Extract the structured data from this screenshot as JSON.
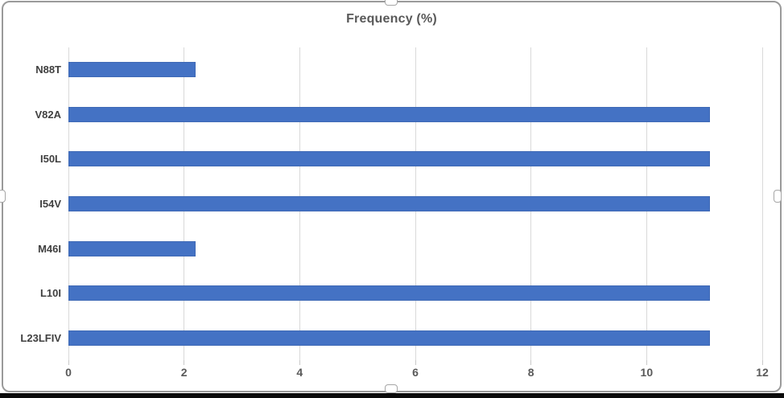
{
  "title": "Frequency (%)",
  "colors": {
    "bar": "#4472C4",
    "bar_edge": "#3F69B5",
    "gridline": "#D9D9D9",
    "title_text": "#595959",
    "axis_text": "#595959",
    "category_text": "#3F3F3F",
    "chart_border": "#9A9A9A",
    "bottom_rule": "#0A0A0A"
  },
  "chart_data": {
    "type": "bar",
    "orientation": "horizontal",
    "title": "Frequency (%)",
    "categories": [
      "N88T",
      "V82A",
      "I50L",
      "I54V",
      "M46I",
      "L10I",
      "L23LFIV"
    ],
    "values": [
      2.2,
      11.1,
      11.1,
      11.1,
      2.2,
      11.1,
      11.1
    ],
    "xlabel": "",
    "ylabel": "",
    "xlim": [
      0,
      12
    ],
    "x_ticks": [
      0,
      2,
      4,
      6,
      8,
      10,
      12
    ],
    "grid": true,
    "legend": false
  },
  "selection": {
    "handles": [
      "top",
      "bottom",
      "left",
      "right"
    ]
  }
}
